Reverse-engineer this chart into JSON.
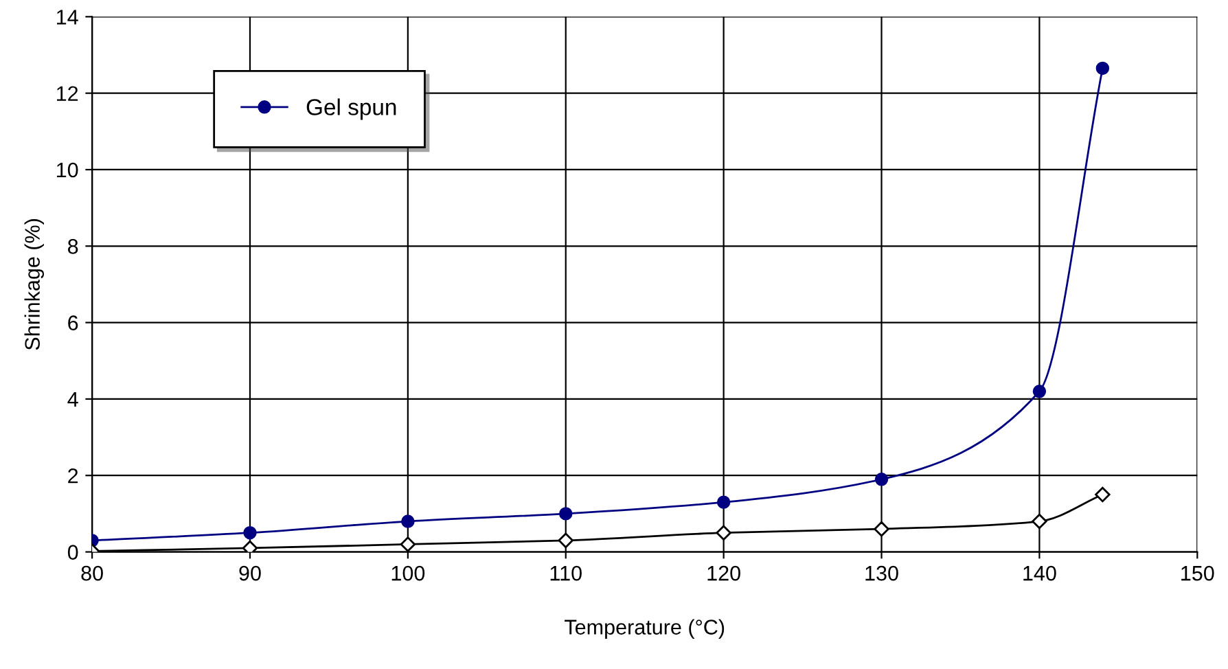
{
  "chart_data": {
    "type": "line",
    "xlabel": "Temperature (°C)",
    "ylabel": "Shrinkage (%)",
    "xlim": [
      80,
      150
    ],
    "xticks": [
      80,
      90,
      100,
      110,
      120,
      130,
      140,
      150
    ],
    "ylim": [
      0,
      14
    ],
    "yticks": [
      0,
      2,
      4,
      6,
      8,
      10,
      12,
      14
    ],
    "grid": true,
    "legend": "top left",
    "series": [
      {
        "name": "Gel spun",
        "color": "#000080",
        "marker": "circle",
        "x": [
          80,
          90,
          100,
          110,
          120,
          130,
          140,
          144
        ],
        "values": [
          0.3,
          0.5,
          0.8,
          1.0,
          1.3,
          1.9,
          4.2,
          12.65
        ]
      },
      {
        "color": "#000000",
        "marker": "diamond",
        "x": [
          80,
          90,
          100,
          110,
          120,
          130,
          140,
          144
        ],
        "values": [
          0.02,
          0.1,
          0.2,
          0.3,
          0.5,
          0.6,
          0.8,
          1.5
        ]
      }
    ]
  }
}
